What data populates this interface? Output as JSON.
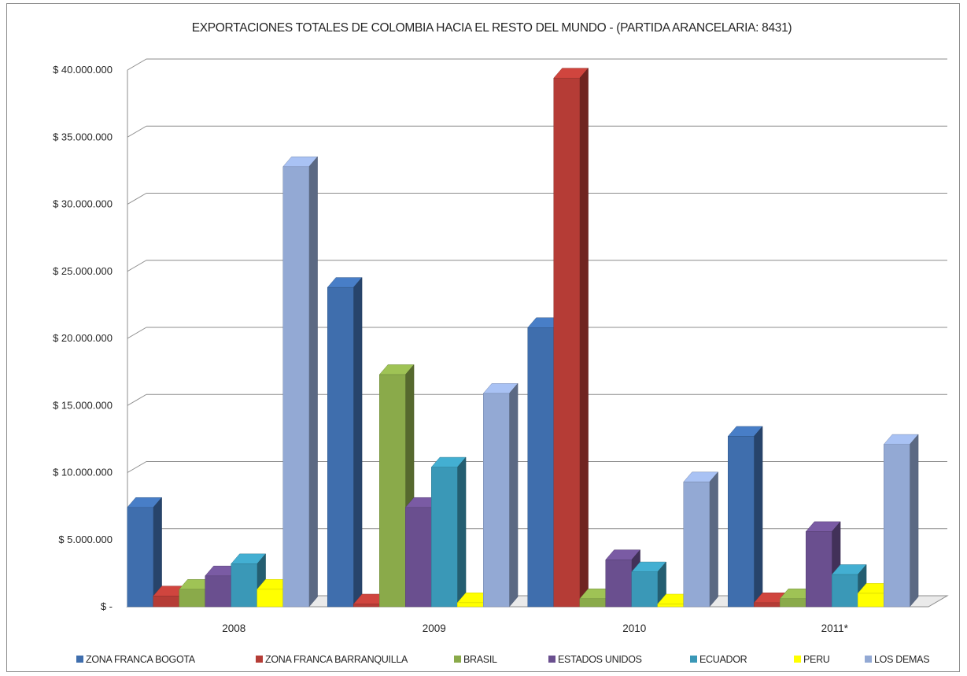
{
  "chart_data": {
    "type": "bar",
    "title": "EXPORTACIONES TOTALES DE COLOMBIA HACIA EL RESTO DEL MUNDO - (PARTIDA ARANCELARIA: 8431)",
    "categories": [
      "2008",
      "2009",
      "2010",
      "2011*"
    ],
    "ylim": [
      0,
      40000000
    ],
    "y_ticks": [
      0,
      5000000,
      10000000,
      15000000,
      20000000,
      25000000,
      30000000,
      35000000,
      40000000
    ],
    "y_tick_labels": [
      "$ -",
      "$ 5.000.000",
      "$ 10.000.000",
      "$ 15.000.000",
      "$ 20.000.000",
      "$ 25.000.000",
      "$ 30.000.000",
      "$ 35.000.000",
      "$ 40.000.000"
    ],
    "grid": true,
    "legend_position": "bottom",
    "three_d": true,
    "series": [
      {
        "name": "ZONA FRANCA BOGOTA",
        "color": "#3F6EAD",
        "values": [
          7400000,
          23800000,
          20800000,
          12700000
        ]
      },
      {
        "name": "ZONA FRANCA BARRANQUILLA",
        "color": "#B53C36",
        "values": [
          800000,
          200000,
          39400000,
          300000
        ]
      },
      {
        "name": "BRASIL",
        "color": "#8AAA4A",
        "values": [
          1300000,
          17300000,
          600000,
          600000
        ]
      },
      {
        "name": "ESTADOS UNIDOS",
        "color": "#6A4F8F",
        "values": [
          2300000,
          7400000,
          3500000,
          5600000
        ]
      },
      {
        "name": "ECUADOR",
        "color": "#3A98B7",
        "values": [
          3200000,
          10400000,
          2600000,
          2400000
        ]
      },
      {
        "name": "PERU",
        "color": "#FFFF00",
        "values": [
          1300000,
          300000,
          200000,
          1000000
        ]
      },
      {
        "name": "LOS DEMAS",
        "color": "#93A9D4",
        "values": [
          32800000,
          15900000,
          9300000,
          12100000
        ]
      }
    ]
  }
}
